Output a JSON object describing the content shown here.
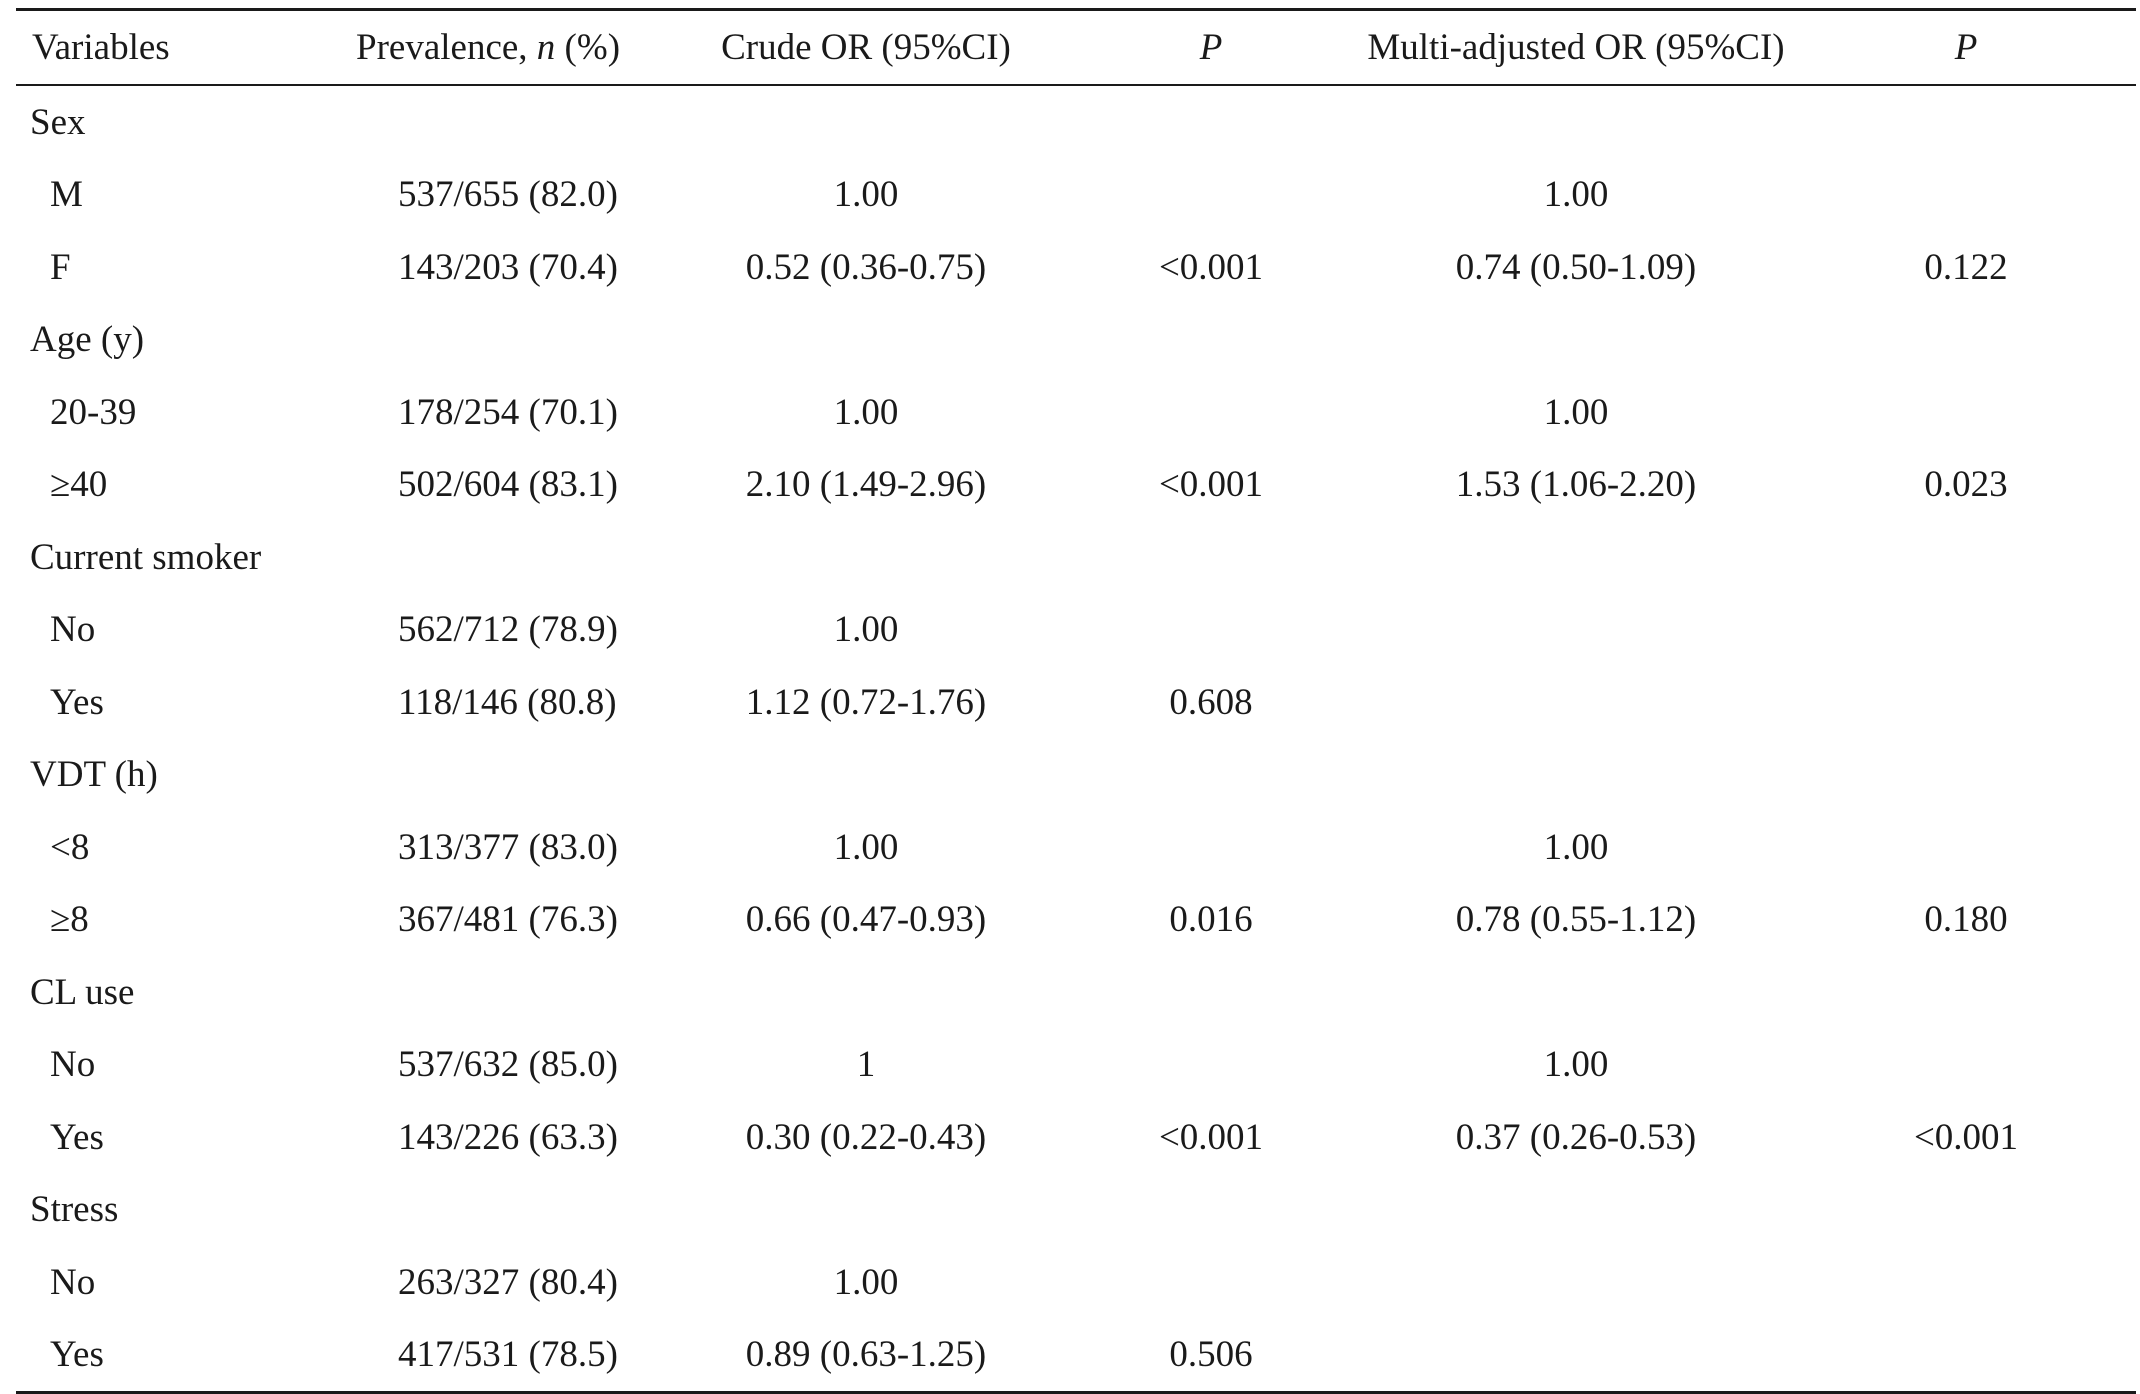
{
  "table": {
    "headers": {
      "variables": "Variables",
      "prevalence_prefix": "Prevalence, ",
      "prevalence_n": "n",
      "prevalence_suffix": " (%)",
      "crude_or": "Crude OR (95%CI)",
      "p1": "P",
      "multi_or": "Multi-adjusted OR (95%CI)",
      "p2": "P"
    },
    "rows": [
      {
        "label": "Sex",
        "group": true,
        "prev": "",
        "crude": "",
        "p1": "",
        "multi": "",
        "p2": ""
      },
      {
        "label": "M",
        "group": false,
        "prev": "537/655 (82.0)",
        "crude": "1.00",
        "p1": "",
        "multi": "1.00",
        "p2": ""
      },
      {
        "label": "F",
        "group": false,
        "prev": "143/203 (70.4)",
        "crude": "0.52 (0.36-0.75)",
        "p1": "<0.001",
        "multi": "0.74 (0.50-1.09)",
        "p2": "0.122"
      },
      {
        "label": "Age (y)",
        "group": true,
        "prev": "",
        "crude": "",
        "p1": "",
        "multi": "",
        "p2": ""
      },
      {
        "label": "20-39",
        "group": false,
        "prev": "178/254 (70.1)",
        "crude": "1.00",
        "p1": "",
        "multi": "1.00",
        "p2": ""
      },
      {
        "label": "≥40",
        "group": false,
        "prev": "502/604 (83.1)",
        "crude": "2.10 (1.49-2.96)",
        "p1": "<0.001",
        "multi": "1.53 (1.06-2.20)",
        "p2": "0.023"
      },
      {
        "label": "Current smoker",
        "group": true,
        "prev": "",
        "crude": "",
        "p1": "",
        "multi": "",
        "p2": ""
      },
      {
        "label": "No",
        "group": false,
        "prev": "562/712 (78.9)",
        "crude": "1.00",
        "p1": "",
        "multi": "",
        "p2": ""
      },
      {
        "label": "Yes",
        "group": false,
        "prev": "118/146 (80.8)",
        "crude": "1.12 (0.72-1.76)",
        "p1": "0.608",
        "multi": "",
        "p2": ""
      },
      {
        "label": "VDT (h)",
        "group": true,
        "prev": "",
        "crude": "",
        "p1": "",
        "multi": "",
        "p2": ""
      },
      {
        "label": "<8",
        "group": false,
        "prev": "313/377 (83.0)",
        "crude": "1.00",
        "p1": "",
        "multi": "1.00",
        "p2": ""
      },
      {
        "label": "≥8",
        "group": false,
        "prev": "367/481 (76.3)",
        "crude": "0.66 (0.47-0.93)",
        "p1": "0.016",
        "multi": "0.78 (0.55-1.12)",
        "p2": "0.180"
      },
      {
        "label": "CL use",
        "group": true,
        "prev": "",
        "crude": "",
        "p1": "",
        "multi": "",
        "p2": ""
      },
      {
        "label": "No",
        "group": false,
        "prev": "537/632 (85.0)",
        "crude": "1",
        "p1": "",
        "multi": "1.00",
        "p2": ""
      },
      {
        "label": "Yes",
        "group": false,
        "prev": "143/226 (63.3)",
        "crude": "0.30 (0.22-0.43)",
        "p1": "<0.001",
        "multi": "0.37 (0.26-0.53)",
        "p2": "<0.001"
      },
      {
        "label": "Stress",
        "group": true,
        "prev": "",
        "crude": "",
        "p1": "",
        "multi": "",
        "p2": ""
      },
      {
        "label": "No",
        "group": false,
        "prev": "263/327 (80.4)",
        "crude": "1.00",
        "p1": "",
        "multi": "",
        "p2": ""
      },
      {
        "label": "Yes",
        "group": false,
        "prev": "417/531 (78.5)",
        "crude": "0.89 (0.63-1.25)",
        "p1": "0.506",
        "multi": "",
        "p2": ""
      }
    ]
  }
}
